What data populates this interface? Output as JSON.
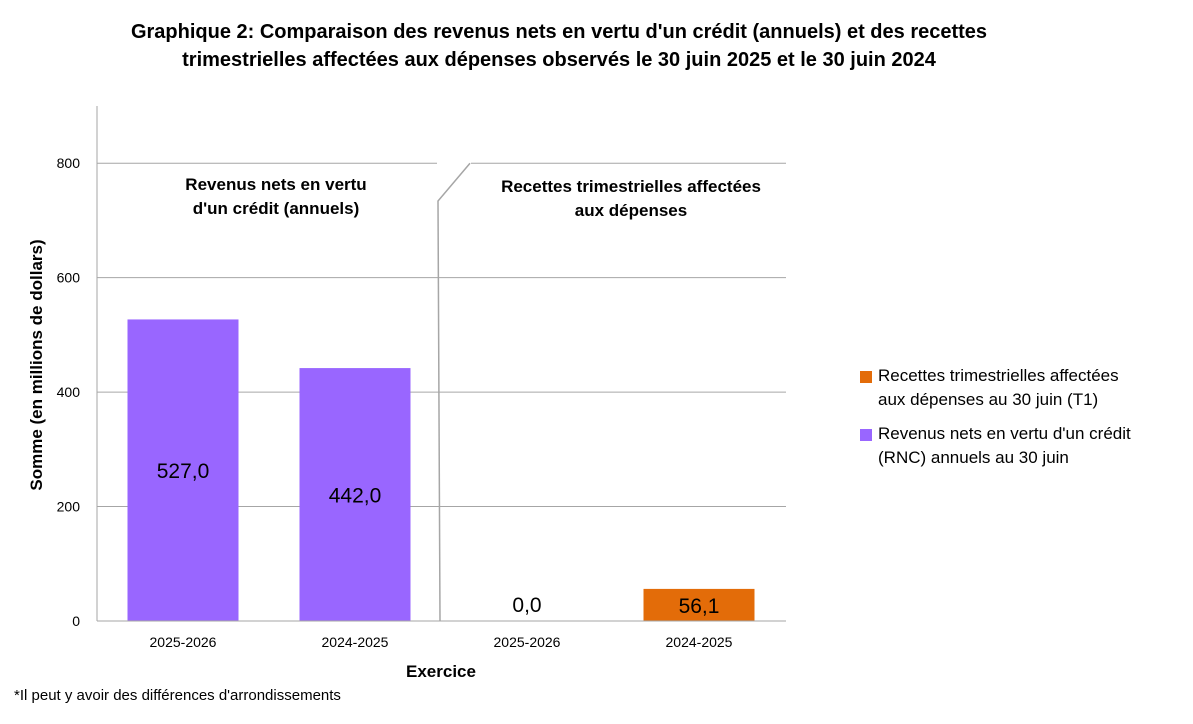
{
  "chart_data": {
    "type": "bar",
    "title": [
      "Graphique 2: Comparaison des revenus nets en vertu d'un crédit (annuels) et des recettes",
      "trimestrielles affectées aux dépenses observés le 30 juin 2025 et le 30 juin 2024"
    ],
    "xlabel": "Exercice",
    "ylabel": "Somme (en millions de dollars)",
    "ylim": [
      0,
      900
    ],
    "yticks": [
      "0",
      "200",
      "400",
      "600",
      "800"
    ],
    "ytick_values": [
      0,
      200,
      400,
      600,
      800
    ],
    "grid": true,
    "legend_position": "right",
    "sections": [
      {
        "label": [
          "Revenus nets en vertu",
          "d'un crédit (annuels)"
        ]
      },
      {
        "label": [
          "Recettes trimestrielles affectées",
          "aux dépenses"
        ]
      }
    ],
    "categories": [
      "2025-2026",
      "2024-2025",
      "2025-2026",
      "2024-2025"
    ],
    "series": [
      {
        "name": "Revenus nets en vertu d'un crédit (RNC) annuels au 30 juin",
        "color": "#9966ff",
        "values": [
          527.0,
          442.0,
          null,
          null
        ],
        "labels": [
          "527,0",
          "442,0",
          "",
          ""
        ]
      },
      {
        "name": "Recettes trimestrielles affectées aux dépenses au 30 juin (T1)",
        "color": "#e36c09",
        "values": [
          null,
          null,
          0.0,
          56.1
        ],
        "labels": [
          "",
          "",
          "0,0",
          "56,1"
        ]
      }
    ],
    "legend": [
      {
        "text": [
          "Recettes trimestrielles affectées",
          "aux dépenses au 30 juin (T1)"
        ],
        "color": "#e36c09"
      },
      {
        "text": [
          "Revenus nets en vertu d'un crédit",
          "(RNC) annuels au 30 juin"
        ],
        "color": "#9966ff"
      }
    ]
  },
  "footnote": "*Il peut y avoir des différences d'arrondissements"
}
